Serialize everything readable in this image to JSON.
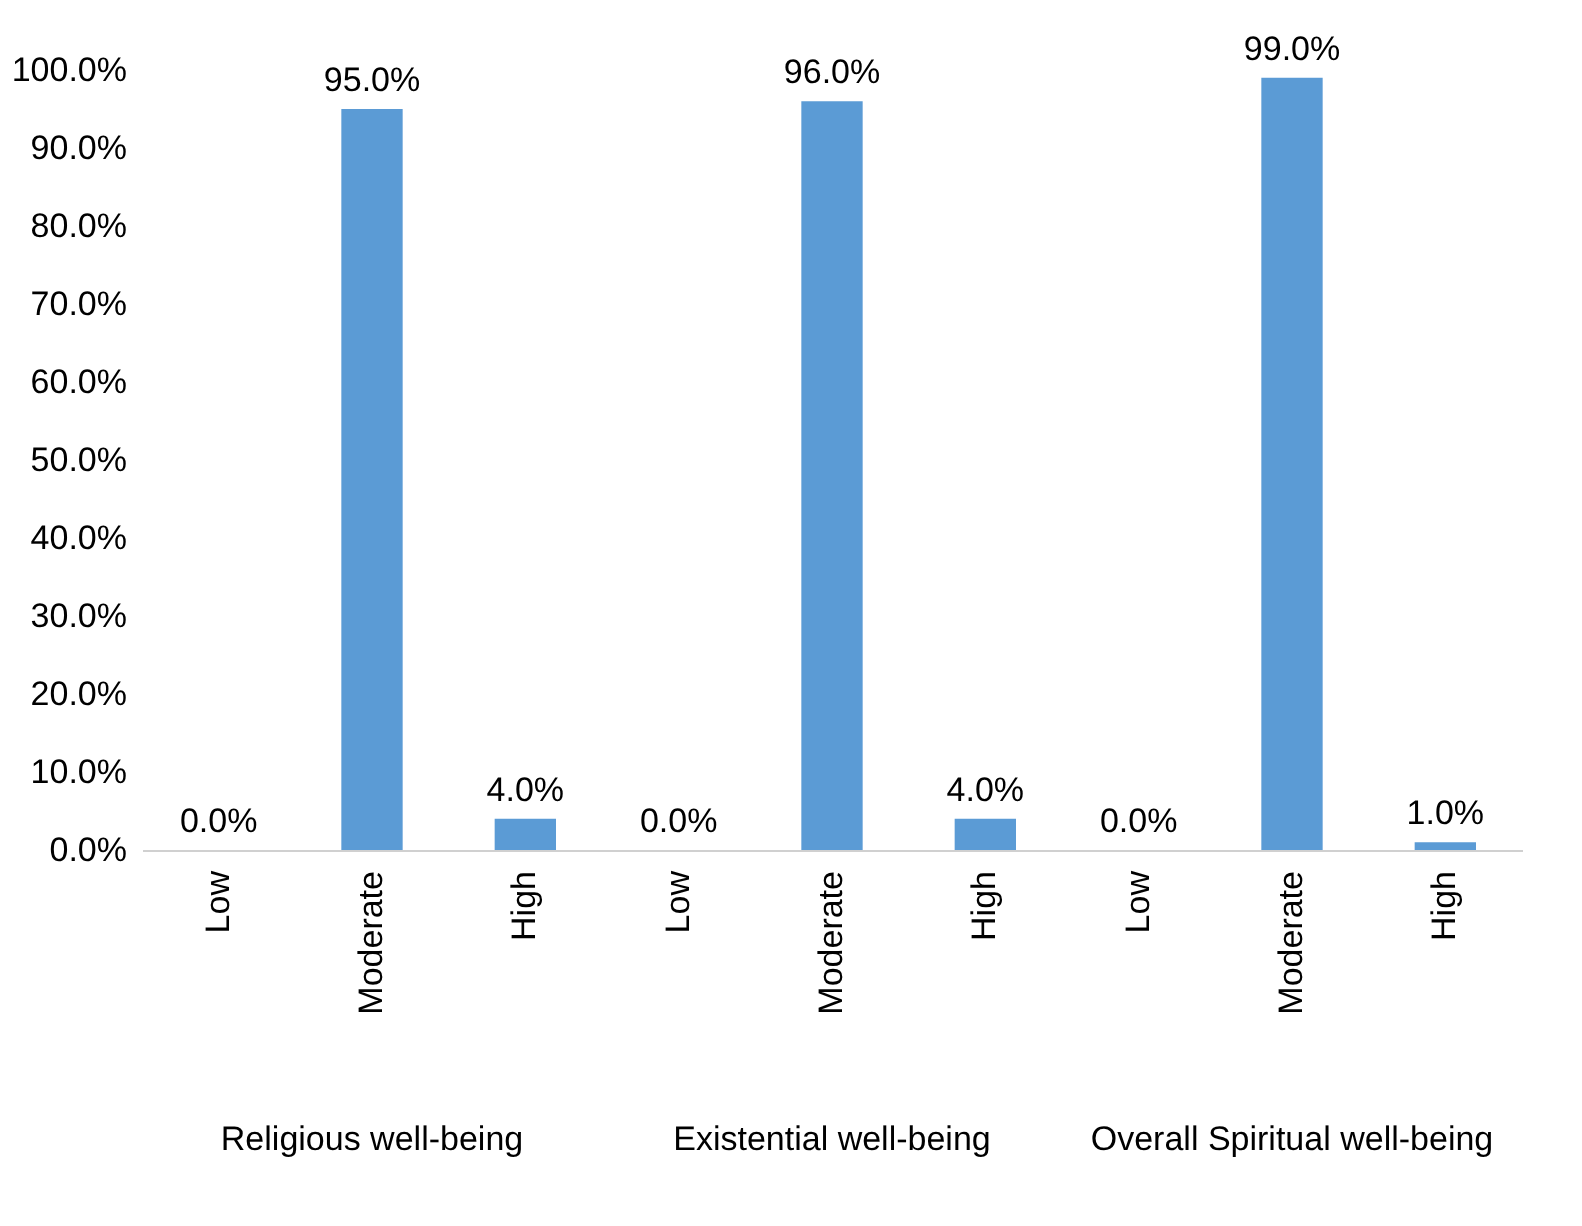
{
  "chart_data": {
    "type": "bar",
    "categories": [
      "Low",
      "Moderate",
      "High",
      "Low",
      "Moderate",
      "High",
      "Low",
      "Moderate",
      "High"
    ],
    "values": [
      0,
      95,
      4,
      0,
      96,
      4,
      0,
      99,
      1
    ],
    "value_labels": [
      "0.0%",
      "95.0%",
      "4.0%",
      "0.0%",
      "96.0%",
      "4.0%",
      "0.0%",
      "99.0%",
      "1.0%"
    ],
    "color": "#5b9bd5",
    "ylim": [
      0,
      100
    ],
    "yticks": [
      {
        "value": 0,
        "label": "0.0%"
      },
      {
        "value": 10,
        "label": "10.0%"
      },
      {
        "value": 20,
        "label": "20.0%"
      },
      {
        "value": 30,
        "label": "30.0%"
      },
      {
        "value": 40,
        "label": "40.0%"
      },
      {
        "value": 50,
        "label": "50.0%"
      },
      {
        "value": 60,
        "label": "60.0%"
      },
      {
        "value": 70,
        "label": "70.0%"
      },
      {
        "value": 80,
        "label": "80.0%"
      },
      {
        "value": 90,
        "label": "90.0%"
      },
      {
        "value": 100,
        "label": "100.0%"
      }
    ],
    "annotations": [
      "Religious well-being",
      "Existential well-being",
      "Overall Spiritual well-being"
    ],
    "grid": false
  }
}
